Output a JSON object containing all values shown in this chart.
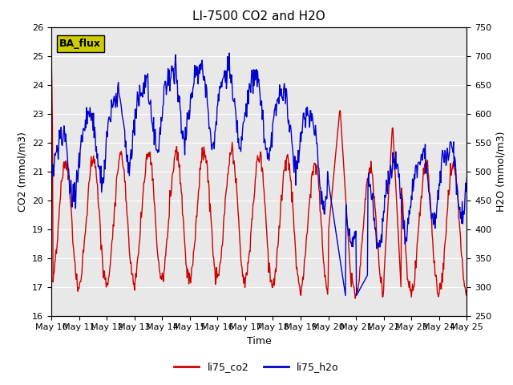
{
  "title": "LI-7500 CO2 and H2O",
  "xlabel": "Time",
  "ylabel_left": "CO2 (mmol/m3)",
  "ylabel_right": "H2O (mmol/m3)",
  "ylim_left": [
    16.0,
    26.0
  ],
  "ylim_right": [
    250,
    750
  ],
  "xtick_labels": [
    "May 10",
    "May 11",
    "May 12",
    "May 13",
    "May 14",
    "May 15",
    "May 16",
    "May 17",
    "May 18",
    "May 19",
    "May 20",
    "May 21",
    "May 22",
    "May 23",
    "May 24",
    "May 25"
  ],
  "yticks_left": [
    16.0,
    17.0,
    18.0,
    19.0,
    20.0,
    21.0,
    22.0,
    23.0,
    24.0,
    25.0,
    26.0
  ],
  "yticks_right": [
    250,
    300,
    350,
    400,
    450,
    500,
    550,
    600,
    650,
    700,
    750
  ],
  "co2_color": "#cc0000",
  "h2o_color": "#0000cc",
  "bg_color": "#e8e8e8",
  "legend_label_co2": "li75_co2",
  "legend_label_h2o": "li75_h2o",
  "annotation_text": "BA_flux",
  "annotation_bg": "#cccc00",
  "line_width": 1.0,
  "title_fontsize": 11,
  "axis_fontsize": 9,
  "tick_fontsize": 8
}
